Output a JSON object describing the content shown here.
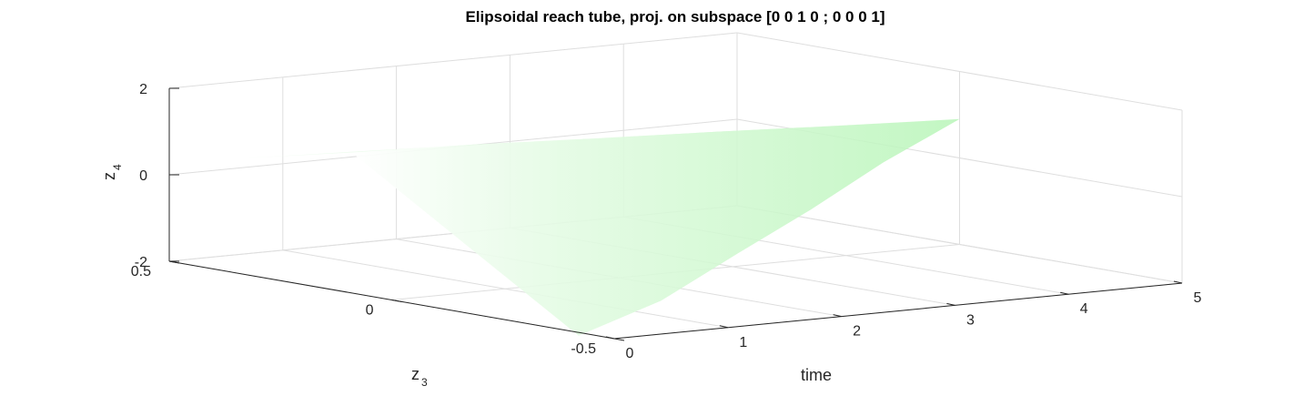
{
  "chart_data": {
    "type": "surface3d",
    "title": "Elipsoidal reach tube, proj. on subspace [0 0 1 0 ; 0 0 0 1]",
    "xlabel": "time",
    "ylabel_main": "z",
    "ylabel_sub": "3",
    "zlabel_main": "z",
    "zlabel_sub": "4",
    "xlim": [
      0,
      5
    ],
    "ylim": [
      -0.5,
      0.5
    ],
    "zlim": [
      -2,
      2
    ],
    "xticks": [
      "0",
      "1",
      "2",
      "3",
      "4",
      "5"
    ],
    "yticks": [
      "-0.5",
      "0",
      "0.5"
    ],
    "zticks": [
      "-2",
      "0",
      "2"
    ],
    "grid": true,
    "surface_color": "#b8f5b8",
    "tube": {
      "time": [
        0,
        1,
        2,
        3,
        4,
        5
      ],
      "z3_halfwidth": [
        0.6,
        0.5,
        0.38,
        0.25,
        0.12,
        0.0
      ],
      "z4_halfwidth": [
        0.35,
        0.3,
        0.22,
        0.15,
        0.07,
        0.0
      ],
      "z4_center": [
        0.9,
        0.9,
        0.9,
        0.9,
        0.9,
        0.9
      ]
    }
  }
}
